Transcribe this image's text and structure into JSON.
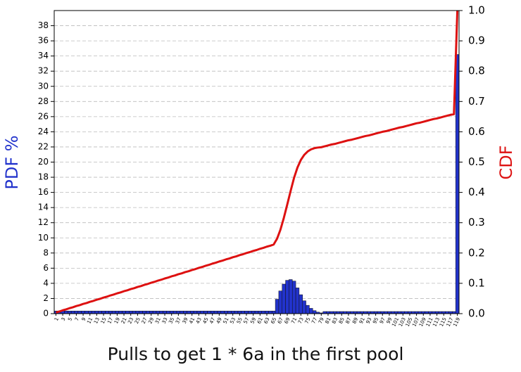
{
  "chart_data": {
    "type": "bar",
    "x_label": "Pulls to get 1 * 6a in the first pool",
    "y_label": "PDF %",
    "y2_label": "CDF",
    "categories": [
      "1",
      null,
      "3",
      null,
      "5",
      null,
      "7",
      null,
      "9",
      null,
      "11",
      null,
      "13",
      null,
      "15",
      null,
      "17",
      null,
      "19",
      null,
      "21",
      null,
      "23",
      null,
      "25",
      null,
      "27",
      null,
      "29",
      null,
      "31",
      null,
      "33",
      null,
      "35",
      null,
      "37",
      null,
      "39",
      null,
      "41",
      null,
      "43",
      null,
      "45",
      null,
      "47",
      null,
      "49",
      null,
      "51",
      null,
      "53",
      null,
      "55",
      null,
      "57",
      null,
      "59",
      null,
      "61",
      null,
      "63",
      null,
      "65",
      null,
      "67",
      null,
      "69",
      null,
      "71",
      null,
      "73",
      null,
      "75",
      null,
      "77",
      null,
      "79",
      null,
      "81",
      null,
      "83",
      null,
      "85",
      null,
      "87",
      null,
      "89",
      null,
      "91",
      null,
      "93",
      null,
      "95",
      null,
      "97",
      null,
      "99",
      null,
      "101",
      null,
      "103",
      null,
      "105",
      null,
      "107",
      null,
      "109",
      null,
      "111",
      null,
      "113",
      null,
      "115",
      null,
      "117",
      null,
      "119"
    ],
    "series": [
      {
        "color": "#2233cc",
        "values": [
          0.35,
          0.35,
          0.35,
          0.35,
          0.35,
          0.35,
          0.35,
          0.35,
          0.35,
          0.35,
          0.35,
          0.35,
          0.35,
          0.35,
          0.35,
          0.35,
          0.35,
          0.35,
          0.35,
          0.35,
          0.35,
          0.35,
          0.35,
          0.35,
          0.35,
          0.35,
          0.35,
          0.35,
          0.35,
          0.35,
          0.35,
          0.35,
          0.35,
          0.35,
          0.35,
          0.35,
          0.35,
          0.35,
          0.35,
          0.35,
          0.35,
          0.35,
          0.35,
          0.35,
          0.35,
          0.35,
          0.35,
          0.35,
          0.35,
          0.35,
          0.35,
          0.35,
          0.35,
          0.35,
          0.35,
          0.35,
          0.35,
          0.35,
          0.35,
          0.35,
          0.35,
          0.35,
          0.35,
          0.35,
          0.35,
          1.9,
          3.0,
          3.9,
          4.4,
          4.5,
          4.3,
          3.4,
          2.5,
          1.7,
          1.1,
          0.7,
          0.4,
          0.2,
          0.1,
          0.28,
          0.28,
          0.28,
          0.28,
          0.28,
          0.28,
          0.28,
          0.28,
          0.28,
          0.28,
          0.28,
          0.28,
          0.28,
          0.28,
          0.28,
          0.28,
          0.28,
          0.28,
          0.28,
          0.28,
          0.28,
          0.28,
          0.28,
          0.28,
          0.28,
          0.28,
          0.28,
          0.28,
          0.28,
          0.28,
          0.28,
          0.28,
          0.28,
          0.28,
          0.28,
          0.28,
          0.28,
          0.28,
          0.28,
          34.2
        ]
      },
      {
        "type": "line",
        "axis": "y2",
        "color": "#dd1111",
        "values": [
          0.004,
          0.007,
          0.011,
          0.014,
          0.018,
          0.021,
          0.025,
          0.028,
          0.032,
          0.035,
          0.039,
          0.042,
          0.046,
          0.049,
          0.053,
          0.056,
          0.06,
          0.063,
          0.067,
          0.07,
          0.074,
          0.077,
          0.081,
          0.084,
          0.088,
          0.091,
          0.095,
          0.098,
          0.102,
          0.105,
          0.109,
          0.112,
          0.116,
          0.119,
          0.123,
          0.126,
          0.13,
          0.133,
          0.137,
          0.14,
          0.144,
          0.147,
          0.151,
          0.154,
          0.158,
          0.161,
          0.165,
          0.168,
          0.172,
          0.175,
          0.179,
          0.182,
          0.186,
          0.189,
          0.193,
          0.196,
          0.2,
          0.203,
          0.207,
          0.21,
          0.214,
          0.217,
          0.221,
          0.224,
          0.228,
          0.247,
          0.277,
          0.316,
          0.36,
          0.405,
          0.448,
          0.482,
          0.507,
          0.524,
          0.535,
          0.542,
          0.546,
          0.548,
          0.549,
          0.552,
          0.555,
          0.558,
          0.56,
          0.563,
          0.566,
          0.569,
          0.572,
          0.574,
          0.577,
          0.58,
          0.583,
          0.586,
          0.588,
          0.591,
          0.594,
          0.597,
          0.6,
          0.602,
          0.605,
          0.608,
          0.611,
          0.614,
          0.616,
          0.619,
          0.622,
          0.625,
          0.628,
          0.63,
          0.633,
          0.636,
          0.639,
          0.642,
          0.644,
          0.647,
          0.65,
          0.653,
          0.656,
          0.658,
          1.0
        ]
      }
    ],
    "ylim": [
      0,
      40
    ],
    "yticks": [
      0,
      2,
      4,
      6,
      8,
      10,
      12,
      14,
      16,
      18,
      20,
      22,
      24,
      26,
      28,
      30,
      32,
      34,
      36,
      38
    ],
    "y2lim": [
      0,
      1
    ],
    "y2ticks": [
      {
        "value": 0,
        "label": "0.0"
      },
      0.1,
      0.2,
      0.3,
      0.4,
      0.5,
      0.6,
      0.7,
      0.8,
      0.9,
      {
        "value": 1,
        "label": "1.0"
      }
    ],
    "grid": true
  }
}
